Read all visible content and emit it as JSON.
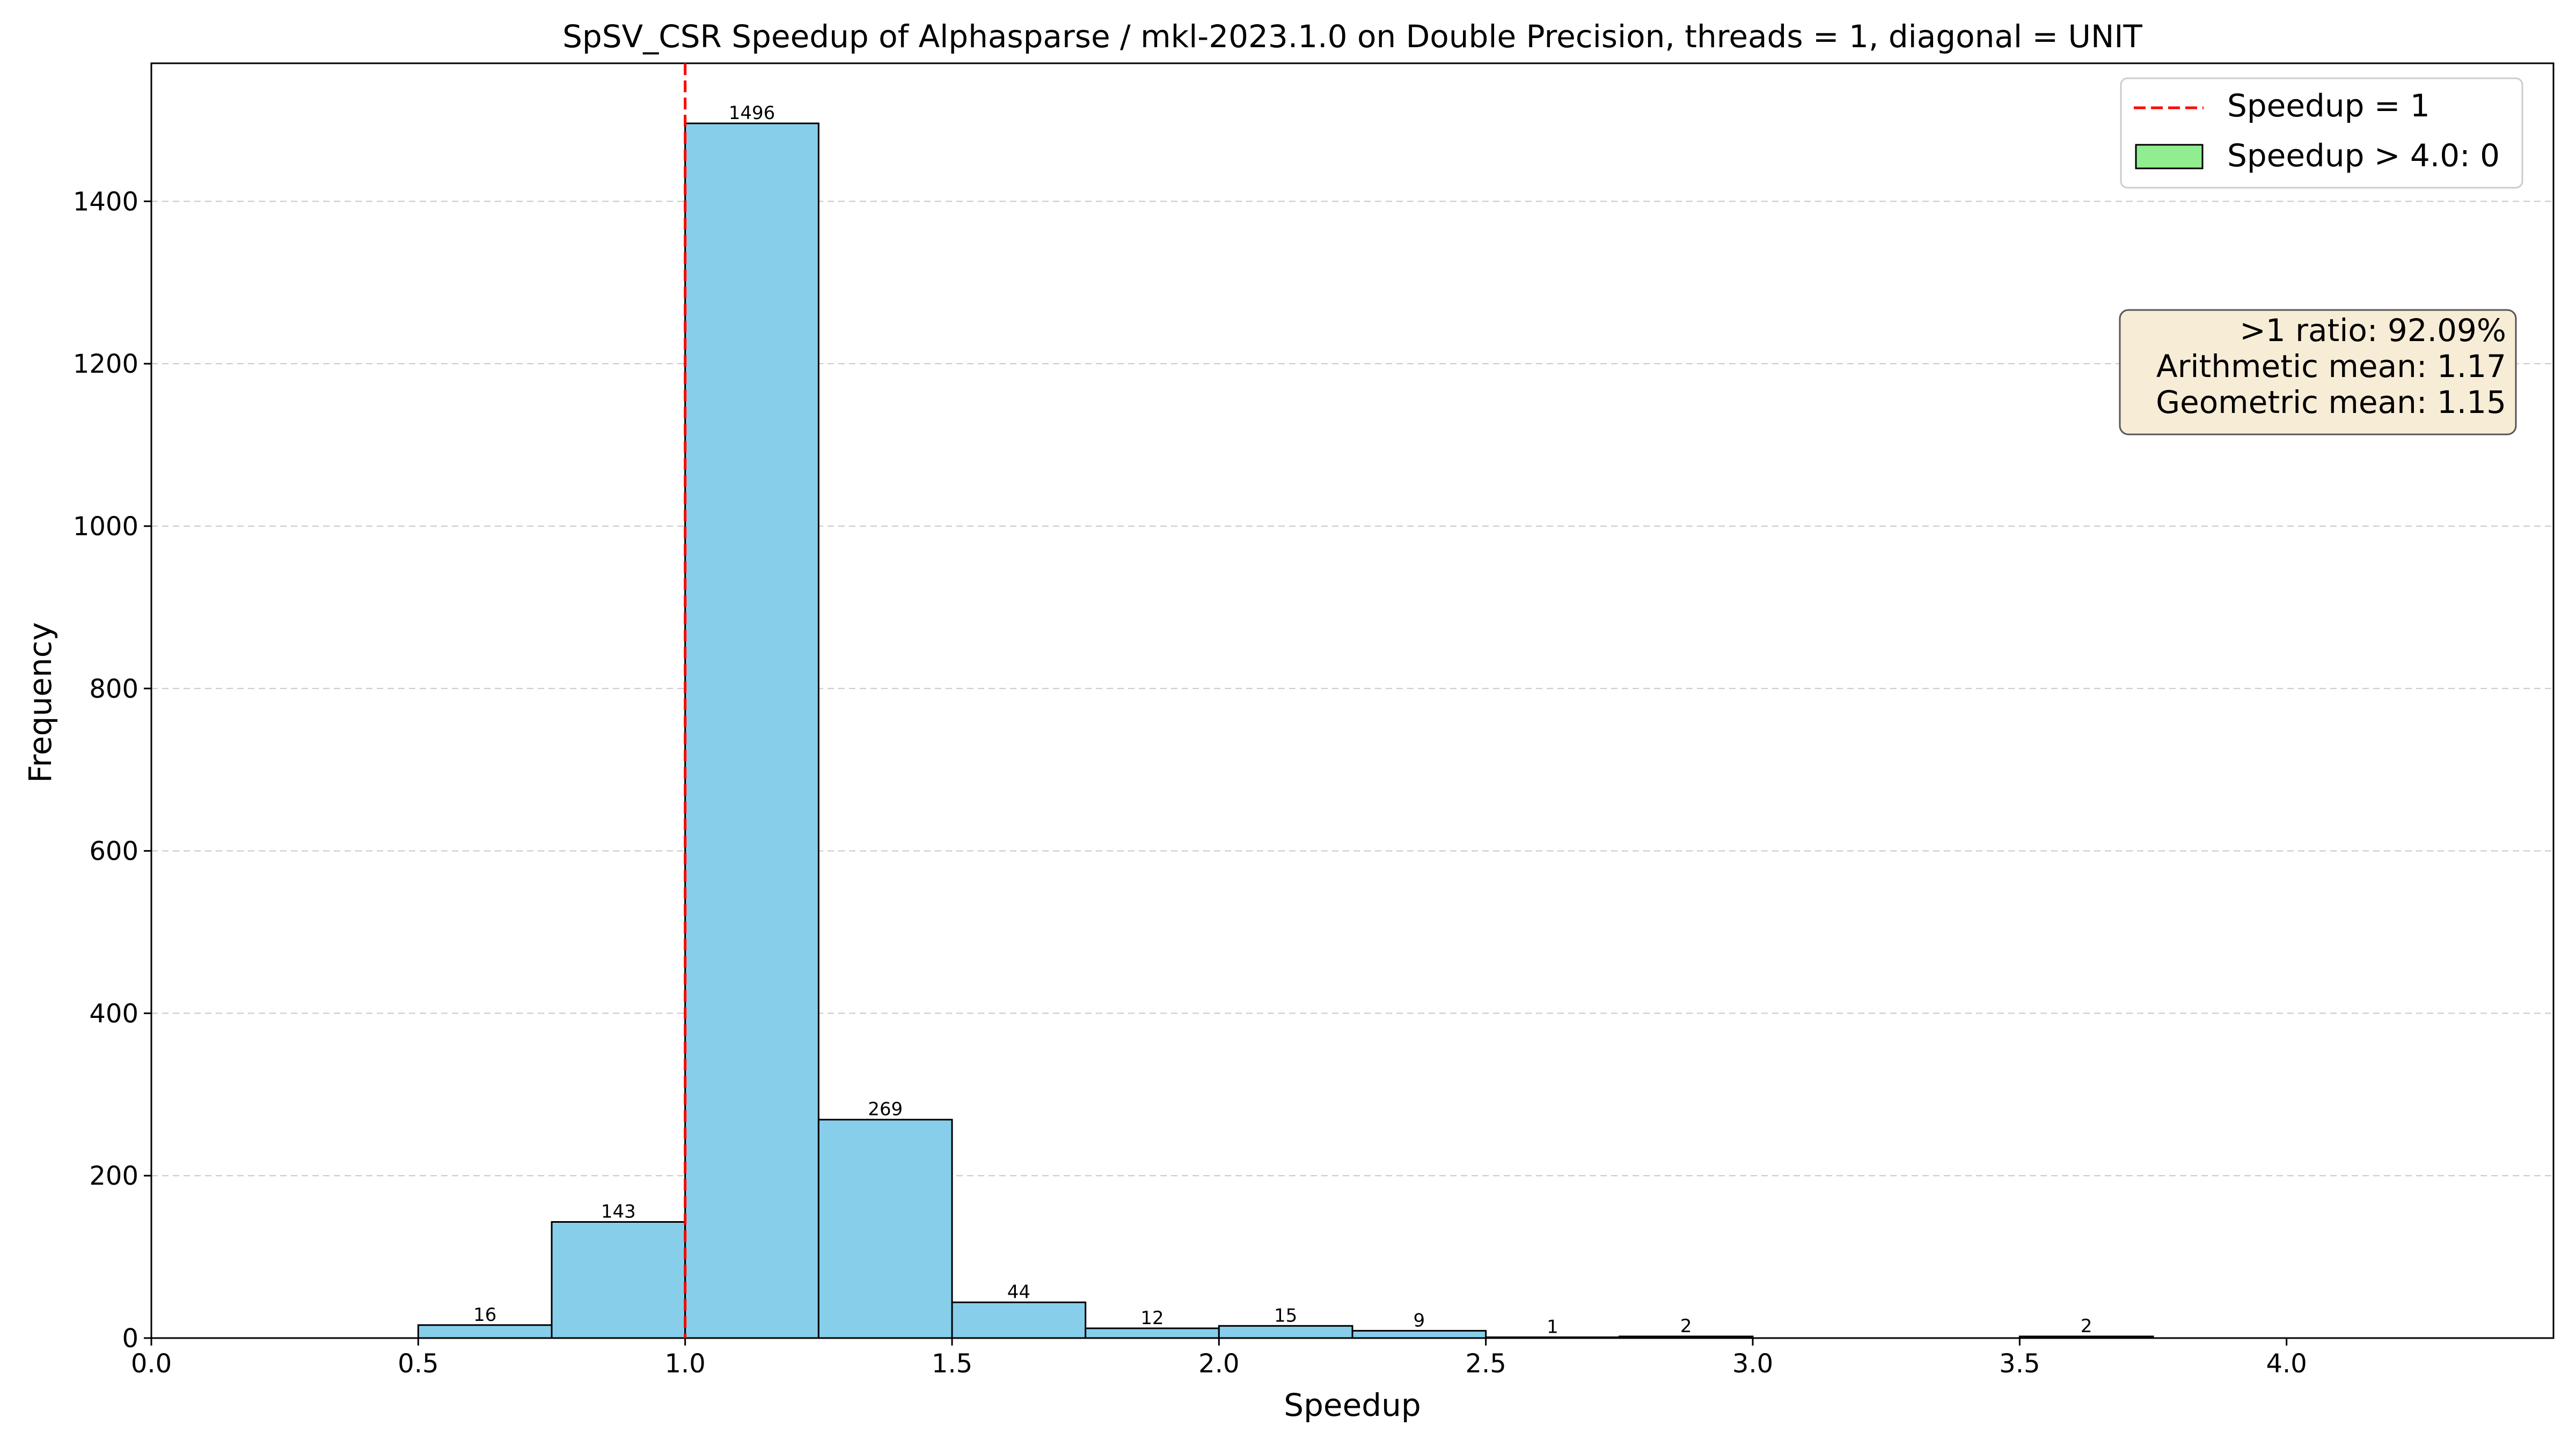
{
  "chart_data": {
    "type": "bar",
    "title": "SpSV_CSR Speedup of Alphasparse / mkl-2023.1.0 on Double Precision, threads = 1, diagonal = UNIT",
    "xlabel": "Speedup",
    "ylabel": "Frequency",
    "xlim": [
      0.0,
      4.5
    ],
    "ylim": [
      0,
      1570
    ],
    "xticks": [
      "0.0",
      "0.5",
      "1.0",
      "1.5",
      "2.0",
      "2.5",
      "3.0",
      "3.5",
      "4.0"
    ],
    "yticks": [
      "0",
      "200",
      "400",
      "600",
      "800",
      "1000",
      "1200",
      "1400"
    ],
    "grid": "y-dashed",
    "bins": [
      {
        "start": 0.5,
        "end": 0.75,
        "count": 16,
        "label": "16"
      },
      {
        "start": 0.75,
        "end": 1.0,
        "count": 143,
        "label": "143"
      },
      {
        "start": 1.0,
        "end": 1.25,
        "count": 1496,
        "label": "1496"
      },
      {
        "start": 1.25,
        "end": 1.5,
        "count": 269,
        "label": "269"
      },
      {
        "start": 1.5,
        "end": 1.75,
        "count": 44,
        "label": "44"
      },
      {
        "start": 1.75,
        "end": 2.0,
        "count": 12,
        "label": "12"
      },
      {
        "start": 2.0,
        "end": 2.25,
        "count": 15,
        "label": "15"
      },
      {
        "start": 2.25,
        "end": 2.5,
        "count": 9,
        "label": "9"
      },
      {
        "start": 2.5,
        "end": 2.75,
        "count": 1,
        "label": "1"
      },
      {
        "start": 2.75,
        "end": 3.0,
        "count": 2,
        "label": "2"
      },
      {
        "start": 3.5,
        "end": 3.75,
        "count": 2,
        "label": "2"
      }
    ],
    "reference_line": {
      "x": 1.0,
      "style": "dashed",
      "color": "#ff0000"
    },
    "legend": {
      "placement": "top-right",
      "items": [
        {
          "label": "Speedup = 1",
          "kind": "dashed-line",
          "color": "#ff0000"
        },
        {
          "label": "Speedup > 4.0: 0",
          "kind": "patch",
          "color": "#90ee90"
        }
      ]
    },
    "stats_box": {
      "placement": "upper-right",
      "lines": [
        ">1 ratio: 92.09%",
        "Arithmetic mean: 1.17",
        "Geometric mean: 1.15"
      ],
      "background": "#f7ecd6"
    },
    "colors": {
      "bar_fill": "#87ceeb",
      "bar_edge": "#000000"
    }
  }
}
